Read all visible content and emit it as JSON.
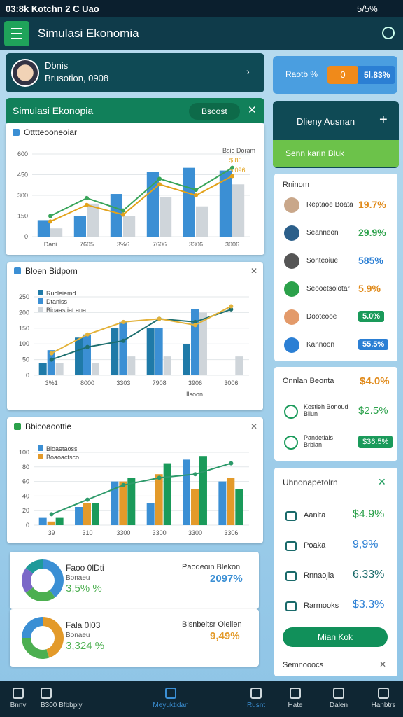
{
  "status": {
    "left": "03:8k Kotchn 2 C Uao",
    "right": "5/5%"
  },
  "app_bar": {
    "title": "Simulasi Ekonomia"
  },
  "profile": {
    "name": "Dbnis",
    "subtitle": "Brusotion, 0908"
  },
  "rate_card": {
    "label": "Raotb %",
    "toggle": "0",
    "value": "5l.83%"
  },
  "panel": {
    "title": "Simulasi Ekonopia",
    "button": "Bsoost"
  },
  "charts": [
    {
      "type": "bar",
      "title": "Otttteooneoiar",
      "annotations": [
        "Bsio Doram",
        "$ 86",
        "$ 096"
      ],
      "categories": [
        "Dani",
        "7605",
        "3%6",
        "7606",
        "3306",
        "3006"
      ],
      "ylim": [
        0,
        600
      ],
      "yticks": [
        0,
        150,
        300,
        450,
        600
      ],
      "grid": true,
      "series": [
        {
          "type": "bar",
          "color": "#3b8fd4",
          "values": [
            120,
            150,
            310,
            470,
            500,
            480
          ]
        },
        {
          "type": "bar",
          "color": "#cfd5da",
          "values": [
            60,
            240,
            150,
            290,
            220,
            380
          ]
        },
        {
          "type": "line",
          "color": "#3aa55a",
          "values": [
            150,
            280,
            190,
            420,
            340,
            500
          ]
        },
        {
          "type": "line",
          "color": "#e3a21a",
          "values": [
            110,
            230,
            160,
            380,
            300,
            440
          ]
        }
      ]
    },
    {
      "type": "bar",
      "title": "Bloen Bidpom",
      "foot": "Ilsoon",
      "categories": [
        "3%1",
        "8000",
        "3303",
        "7908",
        "3906",
        "3006"
      ],
      "ylim": [
        0,
        250
      ],
      "yticks": [
        0,
        50,
        100,
        150,
        200,
        250
      ],
      "grid": true,
      "series": [
        {
          "name": "Rucleiemd",
          "type": "bar",
          "color": "#1f7aa8",
          "values": [
            40,
            120,
            150,
            150,
            100,
            0
          ]
        },
        {
          "name": "Dtaniss",
          "type": "bar",
          "color": "#3b8fd4",
          "values": [
            80,
            130,
            170,
            150,
            210,
            0
          ]
        },
        {
          "name": "Bioaastiat ana",
          "type": "bar",
          "color": "#cfd5da",
          "values": [
            40,
            40,
            60,
            60,
            200,
            60
          ]
        },
        {
          "type": "line",
          "color": "#1e6f6f",
          "values": [
            50,
            90,
            110,
            180,
            170,
            210
          ]
        },
        {
          "type": "line",
          "color": "#e3b23a",
          "values": [
            70,
            130,
            170,
            180,
            160,
            220
          ]
        }
      ]
    },
    {
      "type": "bar",
      "title": "Bbicoaoottie",
      "categories": [
        "39",
        "310",
        "3300",
        "3300",
        "3300",
        "3306"
      ],
      "ylim": [
        0,
        100
      ],
      "yticks": [
        0,
        20,
        40,
        60,
        80,
        100
      ],
      "grid": true,
      "series": [
        {
          "name": "Bioaetaoss",
          "type": "bar",
          "color": "#3b8fd4",
          "values": [
            10,
            25,
            60,
            30,
            90,
            60
          ]
        },
        {
          "name": "Boaoactsco",
          "type": "bar",
          "color": "#e39a2a",
          "values": [
            5,
            30,
            60,
            70,
            50,
            65
          ]
        },
        {
          "type": "bar",
          "color": "#1a9a5a",
          "values": [
            10,
            30,
            65,
            85,
            95,
            50
          ]
        },
        {
          "type": "line",
          "color": "#2d9a6a",
          "values": [
            15,
            35,
            55,
            65,
            70,
            85
          ]
        }
      ]
    }
  ],
  "donuts": [
    {
      "title": "Faoo 0lDti",
      "subtitle": "Bonaeu",
      "value": "3,5% %",
      "right_title": "Paodeoin Blekon",
      "right_value": "2097%",
      "slices": [
        40,
        25,
        20,
        15
      ],
      "colors": [
        "#3b8fd4",
        "#4caf50",
        "#7b68c8",
        "#1e9a9a"
      ]
    },
    {
      "title": "Fala 0l03",
      "subtitle": "Bonaeu",
      "value": "3,324 %",
      "right_title": "Bisnbeitsr Oleiien",
      "right_value": "9,49%",
      "slices": [
        45,
        30,
        25
      ],
      "colors": [
        "#e39a2a",
        "#4caf50",
        "#3b8fd4"
      ]
    }
  ],
  "right": {
    "top": {
      "title": "Dlieny Ausnan",
      "button": "Senn karin Bluk"
    },
    "ranking": {
      "title": "Rninom",
      "rows": [
        {
          "label": "Reptaoe Boata",
          "value": "19.7%",
          "color": "#e08a1a"
        },
        {
          "label": "Seanneon",
          "value": "29.9%",
          "color": "#2ba14a"
        },
        {
          "label": "Sonteoiue",
          "value": "585%",
          "color": "#2b7fd4"
        },
        {
          "label": "Seooetsolotar",
          "value": "5.9%",
          "color": "#e08a1a"
        },
        {
          "label": "Dooteooe",
          "value": "5.0%",
          "color": "#1a9a5a"
        },
        {
          "label": "Kannoon",
          "value": "55.5%",
          "color": "#2b7fd4"
        }
      ]
    },
    "summary": {
      "title": "Onnlan Beonta",
      "value": "$4.0%",
      "rows": [
        {
          "label": "Kostleh Bonoud Bilun",
          "value": "$2.5%",
          "color": "#2ba14a"
        },
        {
          "label": "Pandetiais Brblan",
          "value": "$36.5%",
          "color": "#1a9a5a"
        }
      ]
    },
    "list": {
      "title": "Uhnonapetolrn",
      "rows": [
        {
          "label": "Aanita",
          "value": "$4.9%",
          "color": "#2ba14a"
        },
        {
          "label": "Poaka",
          "value": "9,9%",
          "color": "#2b7fd4"
        },
        {
          "label": "Rnnaojia",
          "value": "6.33%",
          "color": "#1a6a6a"
        },
        {
          "label": "Rarmooks",
          "value": "$3.3%",
          "color": "#2b7fd4"
        }
      ],
      "button": "Mian Kok",
      "footer": "Semnooocs"
    }
  },
  "nav": [
    "Bnnv",
    "B300 Bfbbpiy",
    "Meyuktidan",
    "Rusnt",
    "Hate",
    "Dalen",
    "Hanbtrs"
  ]
}
